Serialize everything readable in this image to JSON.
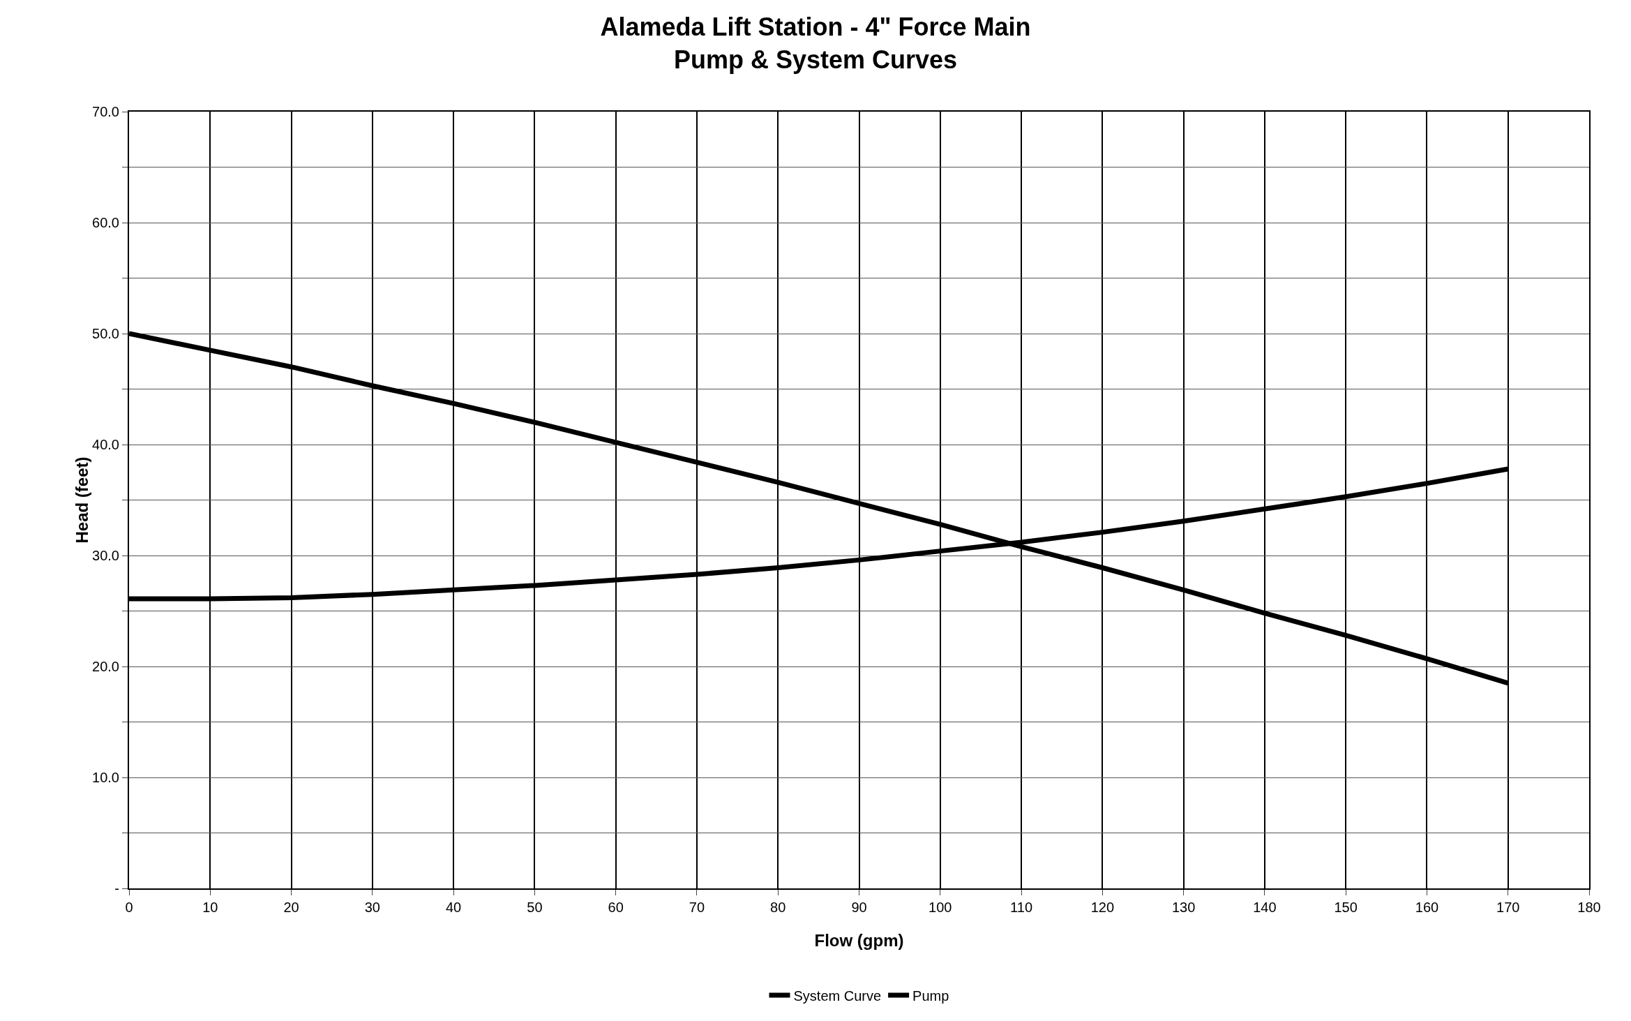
{
  "chart_data": {
    "type": "line",
    "title": "Alameda Lift Station - 4\" Force Main",
    "subtitle": "Pump & System Curves",
    "xlabel": "Flow (gpm)",
    "ylabel": "Head (feet)",
    "x": [
      0,
      10,
      20,
      30,
      40,
      50,
      60,
      70,
      80,
      90,
      100,
      110,
      120,
      130,
      140,
      150,
      160,
      170
    ],
    "series": [
      {
        "name": "System Curve",
        "color": "#000000",
        "values": [
          26.1,
          26.1,
          26.2,
          26.5,
          26.9,
          27.3,
          27.8,
          28.3,
          28.9,
          29.6,
          30.4,
          31.2,
          32.1,
          33.1,
          34.2,
          35.3,
          36.5,
          37.8
        ]
      },
      {
        "name": "Pump",
        "color": "#000000",
        "values": [
          50.0,
          48.5,
          47.0,
          45.3,
          43.7,
          42.0,
          40.2,
          38.4,
          36.6,
          34.7,
          32.8,
          30.8,
          28.9,
          26.9,
          24.8,
          22.8,
          20.7,
          18.5
        ]
      }
    ],
    "xlim": [
      0,
      180
    ],
    "xticks": [
      0,
      10,
      20,
      30,
      40,
      50,
      60,
      70,
      80,
      90,
      100,
      110,
      120,
      130,
      140,
      150,
      160,
      170,
      180
    ],
    "ylim": [
      0,
      70
    ],
    "yticks": [
      {
        "value": 0,
        "label": "-"
      },
      {
        "value": 5,
        "label": null
      },
      {
        "value": 10,
        "label": "10.0"
      },
      {
        "value": 15,
        "label": null
      },
      {
        "value": 20,
        "label": "20.0"
      },
      {
        "value": 25,
        "label": null
      },
      {
        "value": 30,
        "label": "30.0"
      },
      {
        "value": 35,
        "label": null
      },
      {
        "value": 40,
        "label": "40.0"
      },
      {
        "value": 45,
        "label": null
      },
      {
        "value": 50,
        "label": "50.0"
      },
      {
        "value": 55,
        "label": null
      },
      {
        "value": 60,
        "label": "60.0"
      },
      {
        "value": 65,
        "label": null
      },
      {
        "value": 70,
        "label": "70.0"
      }
    ],
    "grid": true,
    "legend": "bottom",
    "marker": "none",
    "line_style": "solid"
  }
}
